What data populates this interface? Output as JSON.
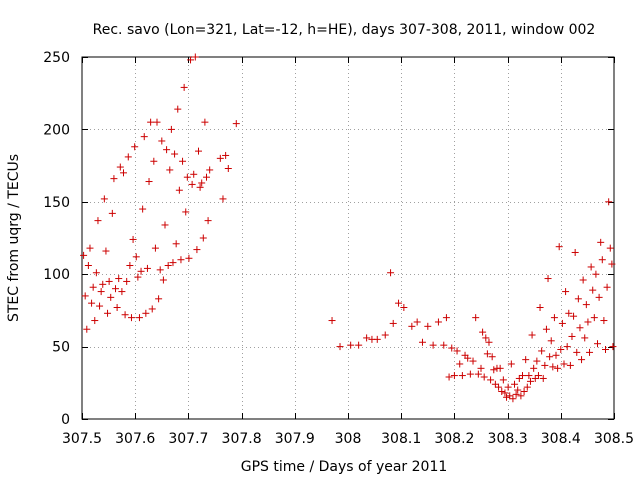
{
  "chart_data": {
    "type": "scatter",
    "title": "Rec. savo (Lon=321, Lat=-12, h=HE), days 307-308, 2011, window 002",
    "xlabel": "GPS time / Days of year 2011",
    "ylabel": "STEC from uqrg / TECUs",
    "xlim": [
      307.5,
      308.5
    ],
    "ylim": [
      0,
      250
    ],
    "x_ticks": [
      307.5,
      307.6,
      307.7,
      307.8,
      307.9,
      308.0,
      308.1,
      308.2,
      308.3,
      308.4,
      308.5
    ],
    "x_tick_labels": [
      "307.5",
      "307.6",
      "307.7",
      "307.8",
      "307.9",
      "308",
      "308.1",
      "308.2",
      "308.3",
      "308.4",
      "308.5"
    ],
    "y_ticks": [
      0,
      50,
      100,
      150,
      200,
      250
    ],
    "y_tick_labels": [
      "0",
      "50",
      "100",
      "150",
      "200",
      "250"
    ],
    "grid": true,
    "marker": "+",
    "color": "#cc0000",
    "series": [
      {
        "name": "STEC",
        "points": [
          [
            307.503,
            113
          ],
          [
            307.506,
            85
          ],
          [
            307.509,
            62
          ],
          [
            307.512,
            106
          ],
          [
            307.515,
            118
          ],
          [
            307.518,
            80
          ],
          [
            307.521,
            91
          ],
          [
            307.524,
            68
          ],
          [
            307.527,
            101
          ],
          [
            307.53,
            137
          ],
          [
            307.533,
            78
          ],
          [
            307.536,
            88
          ],
          [
            307.539,
            93
          ],
          [
            307.542,
            152
          ],
          [
            307.545,
            116
          ],
          [
            307.548,
            73
          ],
          [
            307.551,
            95
          ],
          [
            307.554,
            84
          ],
          [
            307.557,
            142
          ],
          [
            307.56,
            166
          ],
          [
            307.563,
            90
          ],
          [
            307.566,
            77
          ],
          [
            307.569,
            97
          ],
          [
            307.572,
            174
          ],
          [
            307.575,
            88
          ],
          [
            307.578,
            170
          ],
          [
            307.581,
            72
          ],
          [
            307.584,
            95
          ],
          [
            307.587,
            181
          ],
          [
            307.59,
            106
          ],
          [
            307.593,
            70
          ],
          [
            307.596,
            124
          ],
          [
            307.599,
            188
          ],
          [
            307.602,
            112
          ],
          [
            307.605,
            98
          ],
          [
            307.608,
            70
          ],
          [
            307.611,
            102
          ],
          [
            307.614,
            145
          ],
          [
            307.617,
            195
          ],
          [
            307.62,
            73
          ],
          [
            307.623,
            104
          ],
          [
            307.626,
            164
          ],
          [
            307.629,
            205
          ],
          [
            307.632,
            76
          ],
          [
            307.635,
            178
          ],
          [
            307.638,
            118
          ],
          [
            307.641,
            205
          ],
          [
            307.644,
            83
          ],
          [
            307.647,
            103
          ],
          [
            307.65,
            192
          ],
          [
            307.653,
            96
          ],
          [
            307.656,
            134
          ],
          [
            307.659,
            186
          ],
          [
            307.662,
            106
          ],
          [
            307.665,
            172
          ],
          [
            307.668,
            200
          ],
          [
            307.671,
            108
          ],
          [
            307.674,
            183
          ],
          [
            307.677,
            121
          ],
          [
            307.68,
            214
          ],
          [
            307.683,
            158
          ],
          [
            307.686,
            110
          ],
          [
            307.689,
            178
          ],
          [
            307.692,
            229
          ],
          [
            307.695,
            143
          ],
          [
            307.698,
            167
          ],
          [
            307.701,
            111
          ],
          [
            307.704,
            248
          ],
          [
            307.707,
            162
          ],
          [
            307.71,
            169
          ],
          [
            307.713,
            250
          ],
          [
            307.716,
            117
          ],
          [
            307.719,
            185
          ],
          [
            307.722,
            160
          ],
          [
            307.725,
            163
          ],
          [
            307.728,
            125
          ],
          [
            307.731,
            205
          ],
          [
            307.734,
            167
          ],
          [
            307.737,
            137
          ],
          [
            307.74,
            172
          ],
          [
            307.76,
            180
          ],
          [
            307.765,
            152
          ],
          [
            307.77,
            182
          ],
          [
            307.775,
            173
          ],
          [
            307.79,
            204
          ],
          [
            307.97,
            68
          ],
          [
            307.985,
            50
          ],
          [
            308.005,
            51
          ],
          [
            308.02,
            51
          ],
          [
            308.035,
            56
          ],
          [
            308.045,
            55
          ],
          [
            308.055,
            55
          ],
          [
            308.07,
            58
          ],
          [
            308.08,
            101
          ],
          [
            308.085,
            66
          ],
          [
            308.095,
            80
          ],
          [
            308.105,
            77
          ],
          [
            308.12,
            64
          ],
          [
            308.13,
            67
          ],
          [
            308.14,
            53
          ],
          [
            308.15,
            64
          ],
          [
            308.16,
            51
          ],
          [
            308.17,
            67
          ],
          [
            308.18,
            51
          ],
          [
            308.185,
            70
          ],
          [
            308.19,
            29
          ],
          [
            308.195,
            49
          ],
          [
            308.2,
            30
          ],
          [
            308.205,
            47
          ],
          [
            308.21,
            38
          ],
          [
            308.215,
            30
          ],
          [
            308.22,
            44
          ],
          [
            308.225,
            42
          ],
          [
            308.23,
            31
          ],
          [
            308.235,
            40
          ],
          [
            308.24,
            70
          ],
          [
            308.245,
            31
          ],
          [
            308.25,
            35
          ],
          [
            308.253,
            60
          ],
          [
            308.256,
            29
          ],
          [
            308.259,
            56
          ],
          [
            308.262,
            45
          ],
          [
            308.265,
            53
          ],
          [
            308.268,
            27
          ],
          [
            308.271,
            43
          ],
          [
            308.274,
            34
          ],
          [
            308.277,
            24
          ],
          [
            308.28,
            35
          ],
          [
            308.283,
            22
          ],
          [
            308.286,
            35
          ],
          [
            308.289,
            19
          ],
          [
            308.292,
            27
          ],
          [
            308.295,
            18
          ],
          [
            308.298,
            15
          ],
          [
            308.301,
            22
          ],
          [
            308.304,
            16
          ],
          [
            308.307,
            38
          ],
          [
            308.31,
            14
          ],
          [
            308.313,
            24
          ],
          [
            308.316,
            17
          ],
          [
            308.319,
            20
          ],
          [
            308.322,
            28
          ],
          [
            308.325,
            16
          ],
          [
            308.328,
            30
          ],
          [
            308.331,
            19
          ],
          [
            308.334,
            41
          ],
          [
            308.337,
            22
          ],
          [
            308.34,
            30
          ],
          [
            308.343,
            26
          ],
          [
            308.346,
            58
          ],
          [
            308.349,
            35
          ],
          [
            308.352,
            28
          ],
          [
            308.355,
            40
          ],
          [
            308.358,
            30
          ],
          [
            308.361,
            77
          ],
          [
            308.364,
            47
          ],
          [
            308.367,
            28
          ],
          [
            308.37,
            37
          ],
          [
            308.373,
            62
          ],
          [
            308.376,
            97
          ],
          [
            308.379,
            43
          ],
          [
            308.382,
            54
          ],
          [
            308.385,
            36
          ],
          [
            308.388,
            70
          ],
          [
            308.391,
            44
          ],
          [
            308.394,
            35
          ],
          [
            308.397,
            119
          ],
          [
            308.4,
            48
          ],
          [
            308.403,
            66
          ],
          [
            308.406,
            38
          ],
          [
            308.409,
            88
          ],
          [
            308.412,
            50
          ],
          [
            308.415,
            73
          ],
          [
            308.418,
            37
          ],
          [
            308.421,
            57
          ],
          [
            308.424,
            71
          ],
          [
            308.427,
            115
          ],
          [
            308.43,
            46
          ],
          [
            308.433,
            83
          ],
          [
            308.436,
            63
          ],
          [
            308.439,
            41
          ],
          [
            308.442,
            96
          ],
          [
            308.445,
            56
          ],
          [
            308.448,
            79
          ],
          [
            308.451,
            67
          ],
          [
            308.454,
            46
          ],
          [
            308.457,
            105
          ],
          [
            308.46,
            89
          ],
          [
            308.463,
            70
          ],
          [
            308.466,
            100
          ],
          [
            308.469,
            52
          ],
          [
            308.472,
            84
          ],
          [
            308.475,
            122
          ],
          [
            308.478,
            110
          ],
          [
            308.481,
            68
          ],
          [
            308.484,
            48
          ],
          [
            308.487,
            91
          ],
          [
            308.49,
            150
          ],
          [
            308.493,
            118
          ],
          [
            308.496,
            107
          ],
          [
            308.498,
            50
          ]
        ]
      }
    ]
  }
}
